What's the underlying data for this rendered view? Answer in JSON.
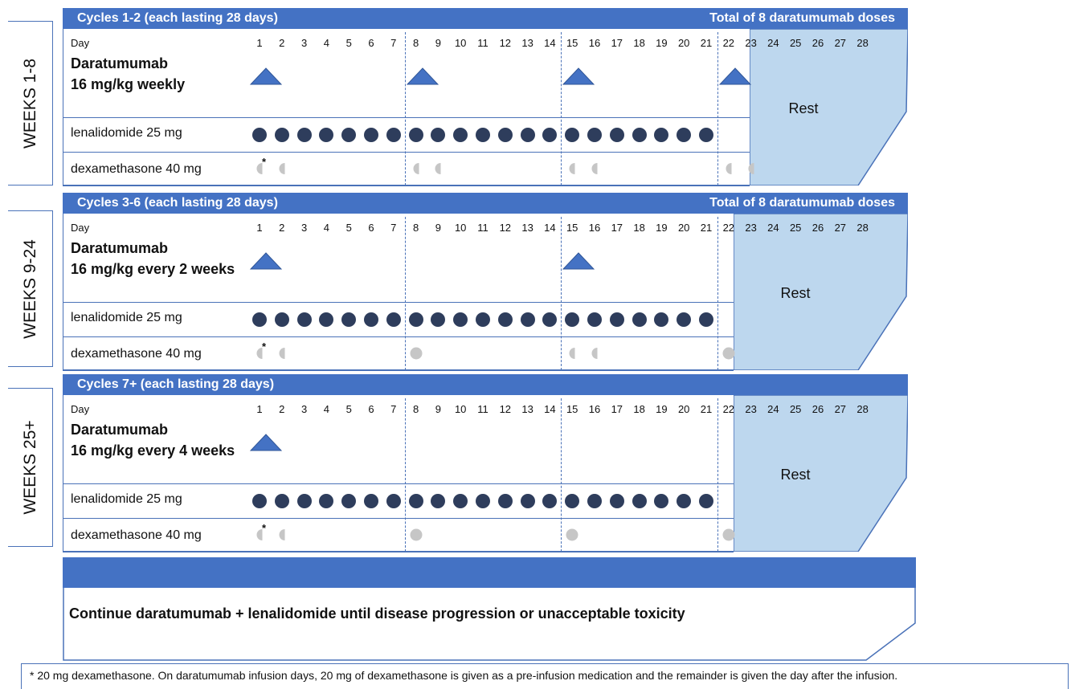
{
  "week_labels": [
    "WEEKS 1-8",
    "WEEKS 9-24",
    "WEEKS 25+"
  ],
  "day_label": "Day",
  "rest_label": "Rest",
  "lenalidomide_label": "lenalidomide 25 mg",
  "dexamethasone_label": "dexamethasone 40 mg",
  "asterisk": "*",
  "cycles": [
    {
      "header_left": "Cycles 1-2 (each lasting 28 days)",
      "header_right": "Total of 8 daratumumab doses",
      "drug_line1": "Daratumumab",
      "drug_line2": "16 mg/kg weekly",
      "days": [
        "1",
        "2",
        "3",
        "4",
        "5",
        "6",
        "7",
        "8",
        "9",
        "10",
        "11",
        "12",
        "13",
        "14",
        "15",
        "16",
        "17",
        "18",
        "19",
        "20",
        "21",
        "22",
        "23",
        "24",
        "25",
        "26",
        "27",
        "28"
      ],
      "daratumumab_days": [
        1,
        8,
        15,
        22
      ],
      "lenalidomide_days": [
        1,
        2,
        3,
        4,
        5,
        6,
        7,
        8,
        9,
        10,
        11,
        12,
        13,
        14,
        15,
        16,
        17,
        18,
        19,
        20,
        21
      ],
      "dexamethasone_split_days": [
        1,
        8,
        15,
        22
      ],
      "dexamethasone_full_days": []
    },
    {
      "header_left": "Cycles 3-6 (each lasting 28 days)",
      "header_right": "Total of 8 daratumumab doses",
      "drug_line1": "Daratumumab",
      "drug_line2": "16 mg/kg every 2 weeks",
      "days": [
        "1",
        "2",
        "3",
        "4",
        "5",
        "6",
        "7",
        "8",
        "9",
        "10",
        "11",
        "12",
        "13",
        "14",
        "15",
        "16",
        "17",
        "18",
        "19",
        "20",
        "21",
        "22",
        "23",
        "24",
        "25",
        "26",
        "27",
        "28"
      ],
      "daratumumab_days": [
        1,
        15
      ],
      "lenalidomide_days": [
        1,
        2,
        3,
        4,
        5,
        6,
        7,
        8,
        9,
        10,
        11,
        12,
        13,
        14,
        15,
        16,
        17,
        18,
        19,
        20,
        21
      ],
      "dexamethasone_split_days": [
        1,
        15
      ],
      "dexamethasone_full_days": [
        8,
        22
      ]
    },
    {
      "header_left": "Cycles 7+ (each lasting 28 days)",
      "header_right": "",
      "drug_line1": "Daratumumab",
      "drug_line2": "16 mg/kg every 4 weeks",
      "days": [
        "1",
        "2",
        "3",
        "4",
        "5",
        "6",
        "7",
        "8",
        "9",
        "10",
        "11",
        "12",
        "13",
        "14",
        "15",
        "16",
        "17",
        "18",
        "19",
        "20",
        "21",
        "22",
        "23",
        "24",
        "25",
        "26",
        "27",
        "28"
      ],
      "daratumumab_days": [
        1
      ],
      "lenalidomide_days": [
        1,
        2,
        3,
        4,
        5,
        6,
        7,
        8,
        9,
        10,
        11,
        12,
        13,
        14,
        15,
        16,
        17,
        18,
        19,
        20,
        21
      ],
      "dexamethasone_split_days": [
        1
      ],
      "dexamethasone_full_days": [
        8,
        15,
        22
      ]
    }
  ],
  "continue_text": "Continue daratumumab + lenalidomide until disease progression or unacceptable toxicity",
  "footnote": "* 20 mg dexamethasone.  On daratumumab infusion days, 20 mg of dexamethasone is given as a pre-infusion medication and the remainder is given the day after the infusion.",
  "colors": {
    "header_blue": "#4472c4",
    "rest_fill": "#bdd7ee",
    "lenalidomide_dot": "#2e3d5c",
    "dexamethasone_dot": "#c6c6c6",
    "daratumumab_triangle": "#4472c4"
  }
}
